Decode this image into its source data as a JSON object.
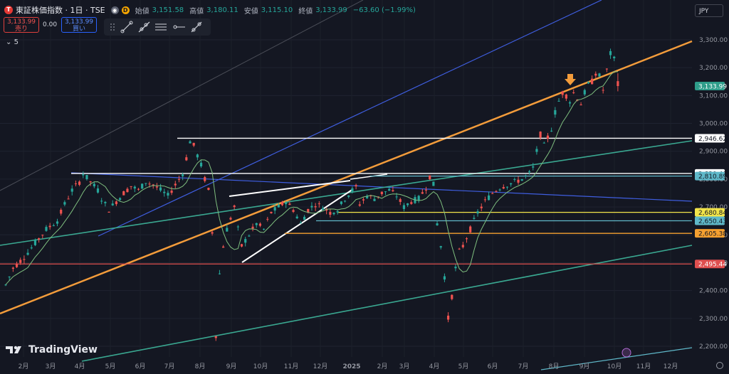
{
  "header": {
    "logo_letter": "T",
    "symbol_title": "東証株価指数 · 1日 · TSE",
    "pill_icon_1": "eye-icon",
    "pill_icon_2": "D",
    "open_label": "始値",
    "open_value": "3,151.58",
    "high_label": "高値",
    "high_value": "3,180.11",
    "low_label": "安値",
    "low_value": "3,115.10",
    "close_label": "終値",
    "close_value": "3,133.99",
    "change": "−63.60 (−1.99%)"
  },
  "trade": {
    "sell_price": "3,133.99",
    "sell_label": "売り",
    "spread": "0.00",
    "buy_price": "3,133.99",
    "buy_label": "買い"
  },
  "toolbar_icons": [
    "drag-handle-icon",
    "trend-line-icon",
    "ray-line-icon",
    "parallel-channel-icon",
    "horizontal-ray-icon",
    "extended-line-icon"
  ],
  "indicators_toggle": "5",
  "currency": "JPY",
  "brand": "TradingView",
  "chart_data": {
    "type": "candlestick",
    "currency": "JPY",
    "x_tick_labels": [
      "2月",
      "3月",
      "4月",
      "5月",
      "6月",
      "7月",
      "8月",
      "9月",
      "10月",
      "11月",
      "12月",
      "2025",
      "2月",
      "3月",
      "4月",
      "5月",
      "6月",
      "7月",
      "8月",
      "9月",
      "10月",
      "11月",
      "12月"
    ],
    "y_tick_labels": [
      "2,200.00",
      "2,300.00",
      "2,400.00",
      "2,500.00",
      "2,600.00",
      "2,700.00",
      "2,800.00",
      "2,900.00",
      "3,000.00",
      "3,100.00",
      "3,200.00",
      "3,300.00"
    ],
    "ylim": [
      2165,
      3335
    ],
    "last_price": 3133.99,
    "last_ohlc": {
      "open": 3151.58,
      "high": 3180.11,
      "low": 3115.1,
      "close": 3133.99
    },
    "price_path": [
      [
        0,
        2420
      ],
      [
        2,
        2480
      ],
      [
        5,
        2520
      ],
      [
        8,
        2570
      ],
      [
        11,
        2620
      ],
      [
        14,
        2650
      ],
      [
        16,
        2710
      ],
      [
        18,
        2760
      ],
      [
        20,
        2790
      ],
      [
        21,
        2820
      ],
      [
        23,
        2790
      ],
      [
        25,
        2760
      ],
      [
        26,
        2730
      ],
      [
        28,
        2690
      ],
      [
        30,
        2720
      ],
      [
        32,
        2750
      ],
      [
        34,
        2775
      ],
      [
        36,
        2760
      ],
      [
        38,
        2790
      ],
      [
        40,
        2780
      ],
      [
        42,
        2760
      ],
      [
        44,
        2740
      ],
      [
        46,
        2780
      ],
      [
        48,
        2820
      ],
      [
        49,
        2875
      ],
      [
        50,
        2935
      ],
      [
        51,
        2920
      ],
      [
        53,
        2850
      ],
      [
        54,
        2800
      ],
      [
        55,
        2760
      ],
      [
        56,
        2610
      ],
      [
        57,
        2240
      ],
      [
        58,
        2460
      ],
      [
        59,
        2560
      ],
      [
        60,
        2620
      ],
      [
        62,
        2700
      ],
      [
        63,
        2620
      ],
      [
        64,
        2560
      ],
      [
        66,
        2600
      ],
      [
        68,
        2640
      ],
      [
        70,
        2620
      ],
      [
        72,
        2680
      ],
      [
        74,
        2700
      ],
      [
        76,
        2720
      ],
      [
        78,
        2690
      ],
      [
        80,
        2640
      ],
      [
        82,
        2690
      ],
      [
        84,
        2710
      ],
      [
        86,
        2700
      ],
      [
        88,
        2680
      ],
      [
        90,
        2690
      ],
      [
        92,
        2730
      ],
      [
        94,
        2760
      ],
      [
        95,
        2770
      ],
      [
        96,
        2710
      ],
      [
        98,
        2740
      ],
      [
        100,
        2730
      ],
      [
        102,
        2750
      ],
      [
        104,
        2760
      ],
      [
        106,
        2740
      ],
      [
        108,
        2700
      ],
      [
        110,
        2720
      ],
      [
        112,
        2730
      ],
      [
        114,
        2770
      ],
      [
        115,
        2810
      ],
      [
        116,
        2780
      ],
      [
        117,
        2640
      ],
      [
        118,
        2560
      ],
      [
        119,
        2450
      ],
      [
        120,
        2300
      ],
      [
        121,
        2380
      ],
      [
        122,
        2480
      ],
      [
        123,
        2540
      ],
      [
        124,
        2560
      ],
      [
        126,
        2620
      ],
      [
        128,
        2680
      ],
      [
        130,
        2720
      ],
      [
        132,
        2750
      ],
      [
        134,
        2770
      ],
      [
        136,
        2780
      ],
      [
        138,
        2790
      ],
      [
        140,
        2800
      ],
      [
        142,
        2820
      ],
      [
        143,
        2840
      ],
      [
        144,
        2900
      ],
      [
        145,
        2960
      ],
      [
        146,
        2920
      ],
      [
        147,
        2950
      ],
      [
        148,
        2980
      ],
      [
        149,
        3040
      ],
      [
        150,
        3080
      ],
      [
        151,
        3110
      ],
      [
        152,
        3100
      ],
      [
        153,
        3080
      ],
      [
        154,
        3110
      ],
      [
        155,
        3090
      ],
      [
        156,
        3070
      ],
      [
        157,
        3110
      ],
      [
        158,
        3140
      ],
      [
        159,
        3150
      ],
      [
        160,
        3180
      ],
      [
        161,
        3170
      ],
      [
        162,
        3120
      ],
      [
        163,
        3190
      ],
      [
        164,
        3250
      ],
      [
        165,
        3230
      ],
      [
        166,
        3133.99
      ]
    ],
    "horizontal_levels": [
      {
        "value": 2946.62,
        "label": "2,946.62",
        "color": "#ffffff"
      },
      {
        "value": 2820.4,
        "label": "2,820.40",
        "color": "#ffffff"
      },
      {
        "value": 2810.89,
        "label": "2,810.89",
        "color": "#5fb8c9"
      },
      {
        "value": 2680.84,
        "label": "2,680.84",
        "color": "#f2e44a"
      },
      {
        "value": 2650.43,
        "label": "2,650.43",
        "color": "#5fb8c9"
      },
      {
        "value": 2605.38,
        "label": "2,605.38",
        "color": "#f5a030"
      },
      {
        "value": 2495.44,
        "label": "2,495.44",
        "color": "#e04f4f"
      }
    ],
    "colors": {
      "up": "#26a69a",
      "down": "#ef5350",
      "ma": "#7fbf7f",
      "background": "#141722",
      "last_price_tag": "#2e9d8a"
    }
  }
}
